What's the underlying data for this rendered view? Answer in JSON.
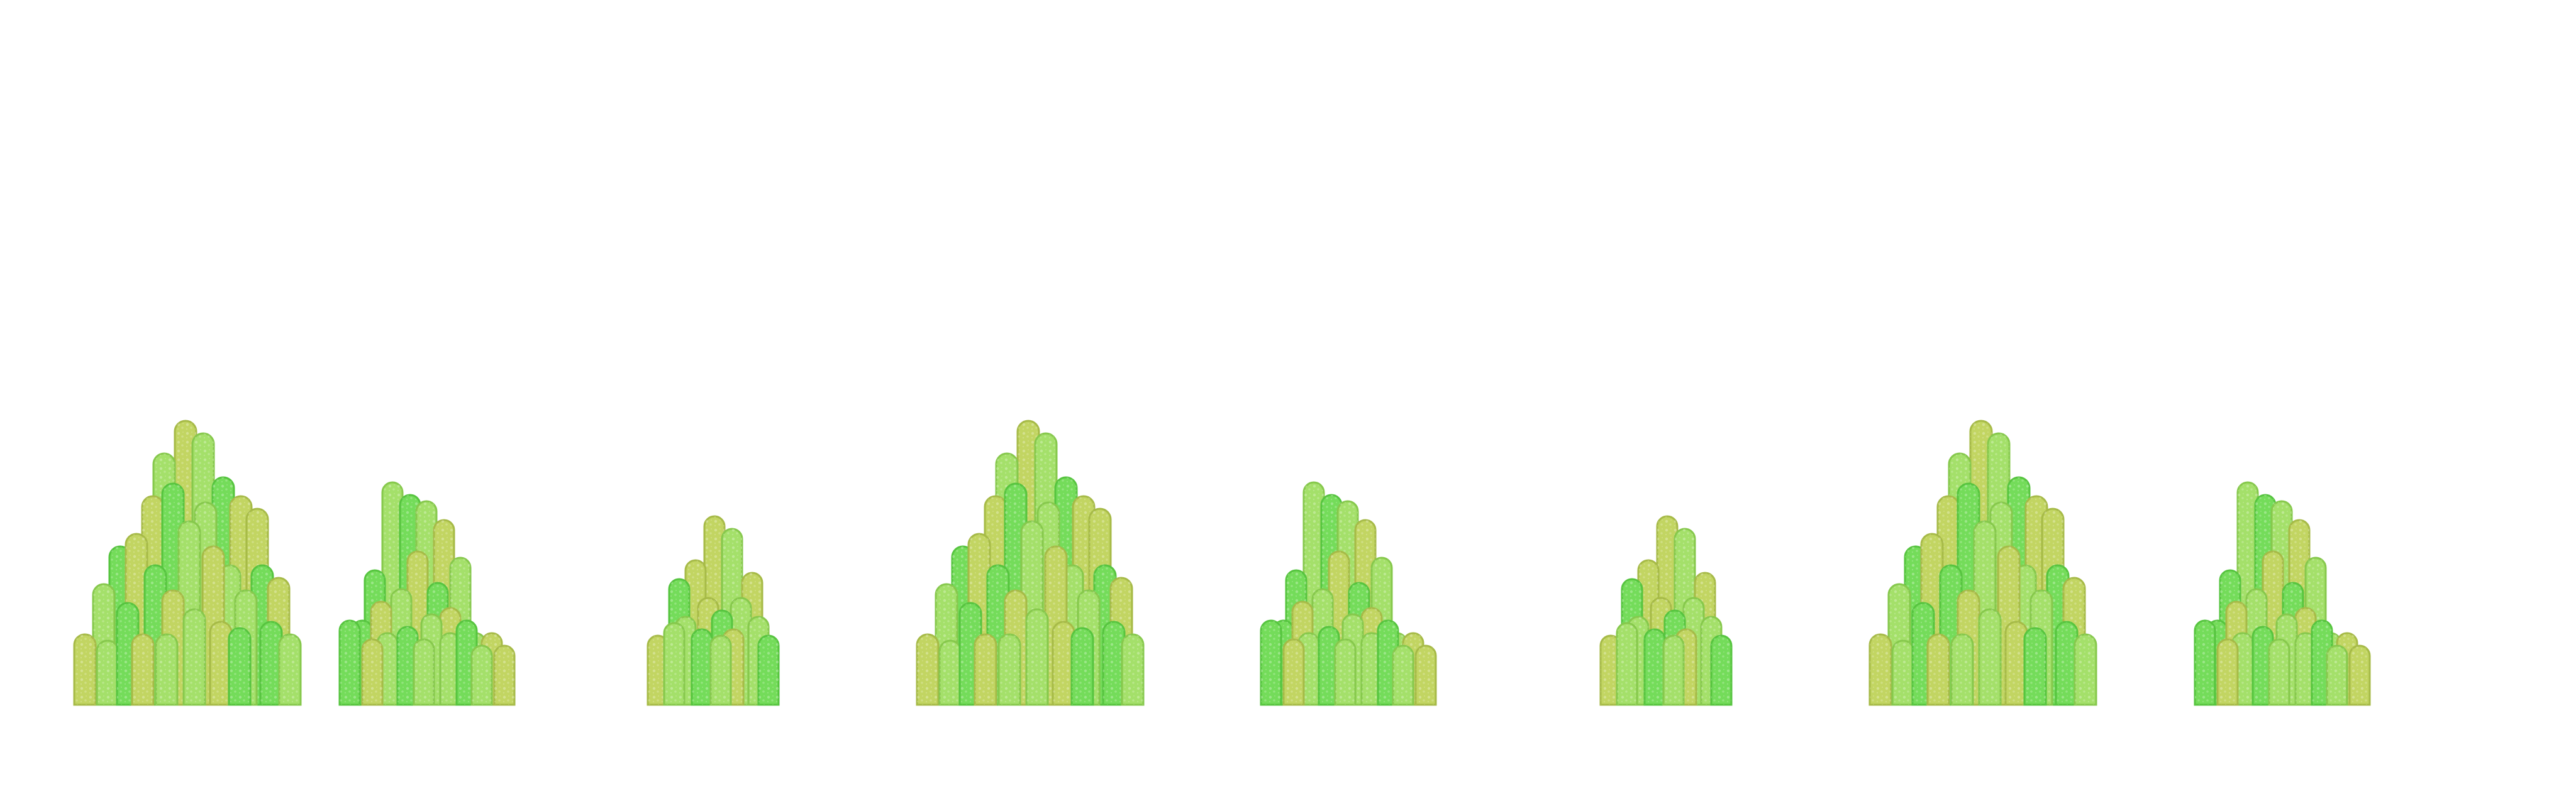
{
  "sheet": {
    "background": "#ffffff",
    "sprite_type": "grass-clump",
    "palette": {
      "yellow_green": "#c2d562",
      "yellow_green_stroke": "#a6ba47",
      "light_green": "#a4e06a",
      "light_green_stroke": "#86c84c",
      "bright_green": "#74dc5a",
      "bright_green_stroke": "#56c43f",
      "speckle": "#e6f7c0"
    },
    "sprites": [
      {
        "id": "grass-clump-1",
        "size": "large"
      },
      {
        "id": "grass-clump-2",
        "size": "medium"
      },
      {
        "id": "grass-clump-3",
        "size": "small"
      },
      {
        "id": "grass-clump-4",
        "size": "large"
      },
      {
        "id": "grass-clump-5",
        "size": "medium"
      },
      {
        "id": "grass-clump-6",
        "size": "small"
      },
      {
        "id": "grass-clump-7",
        "size": "large"
      },
      {
        "id": "grass-clump-8",
        "size": "medium"
      }
    ]
  }
}
